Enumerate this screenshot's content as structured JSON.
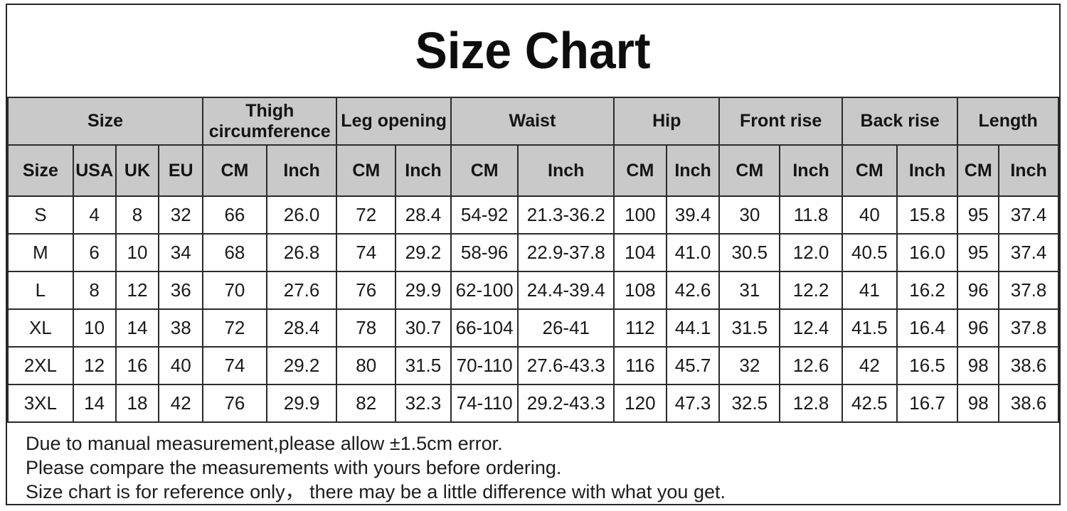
{
  "title": "Size Chart",
  "chart_data": {
    "type": "table",
    "title": "Size Chart",
    "column_groups": [
      {
        "label": "Size",
        "colspan": 4
      },
      {
        "label": "Thigh circumference",
        "colspan": 2
      },
      {
        "label": "Leg opening",
        "colspan": 2
      },
      {
        "label": "Waist",
        "colspan": 2
      },
      {
        "label": "Hip",
        "colspan": 2
      },
      {
        "label": "Front rise",
        "colspan": 2
      },
      {
        "label": "Back rise",
        "colspan": 2
      },
      {
        "label": "Length",
        "colspan": 2
      }
    ],
    "columns": [
      "Size",
      "USA",
      "UK",
      "EU",
      "CM",
      "Inch",
      "CM",
      "Inch",
      "CM",
      "Inch",
      "CM",
      "Inch",
      "CM",
      "Inch",
      "CM",
      "Inch",
      "CM",
      "Inch"
    ],
    "rows": [
      [
        "S",
        "4",
        "8",
        "32",
        "66",
        "26.0",
        "72",
        "28.4",
        "54-92",
        "21.3-36.2",
        "100",
        "39.4",
        "30",
        "11.8",
        "40",
        "15.8",
        "95",
        "37.4"
      ],
      [
        "M",
        "6",
        "10",
        "34",
        "68",
        "26.8",
        "74",
        "29.2",
        "58-96",
        "22.9-37.8",
        "104",
        "41.0",
        "30.5",
        "12.0",
        "40.5",
        "16.0",
        "95",
        "37.4"
      ],
      [
        "L",
        "8",
        "12",
        "36",
        "70",
        "27.6",
        "76",
        "29.9",
        "62-100",
        "24.4-39.4",
        "108",
        "42.6",
        "31",
        "12.2",
        "41",
        "16.2",
        "96",
        "37.8"
      ],
      [
        "XL",
        "10",
        "14",
        "38",
        "72",
        "28.4",
        "78",
        "30.7",
        "66-104",
        "26-41",
        "112",
        "44.1",
        "31.5",
        "12.4",
        "41.5",
        "16.4",
        "96",
        "37.8"
      ],
      [
        "2XL",
        "12",
        "16",
        "40",
        "74",
        "29.2",
        "80",
        "31.5",
        "70-110",
        "27.6-43.3",
        "116",
        "45.7",
        "32",
        "12.6",
        "42",
        "16.5",
        "98",
        "38.6"
      ],
      [
        "3XL",
        "14",
        "18",
        "42",
        "76",
        "29.9",
        "82",
        "32.3",
        "74-110",
        "29.2-43.3",
        "120",
        "47.3",
        "32.5",
        "12.8",
        "42.5",
        "16.7",
        "98",
        "38.6"
      ]
    ]
  },
  "notes": {
    "lines": [
      "Due to manual measurement,please allow ±1.5cm error.",
      "Please compare the measurements with yours before ordering.",
      "Size chart is for reference only， there may be a little difference with what you get."
    ]
  },
  "colors": {
    "header_bg": "#c9c9c9",
    "border": "#2b2b2b",
    "text": "#111111"
  }
}
